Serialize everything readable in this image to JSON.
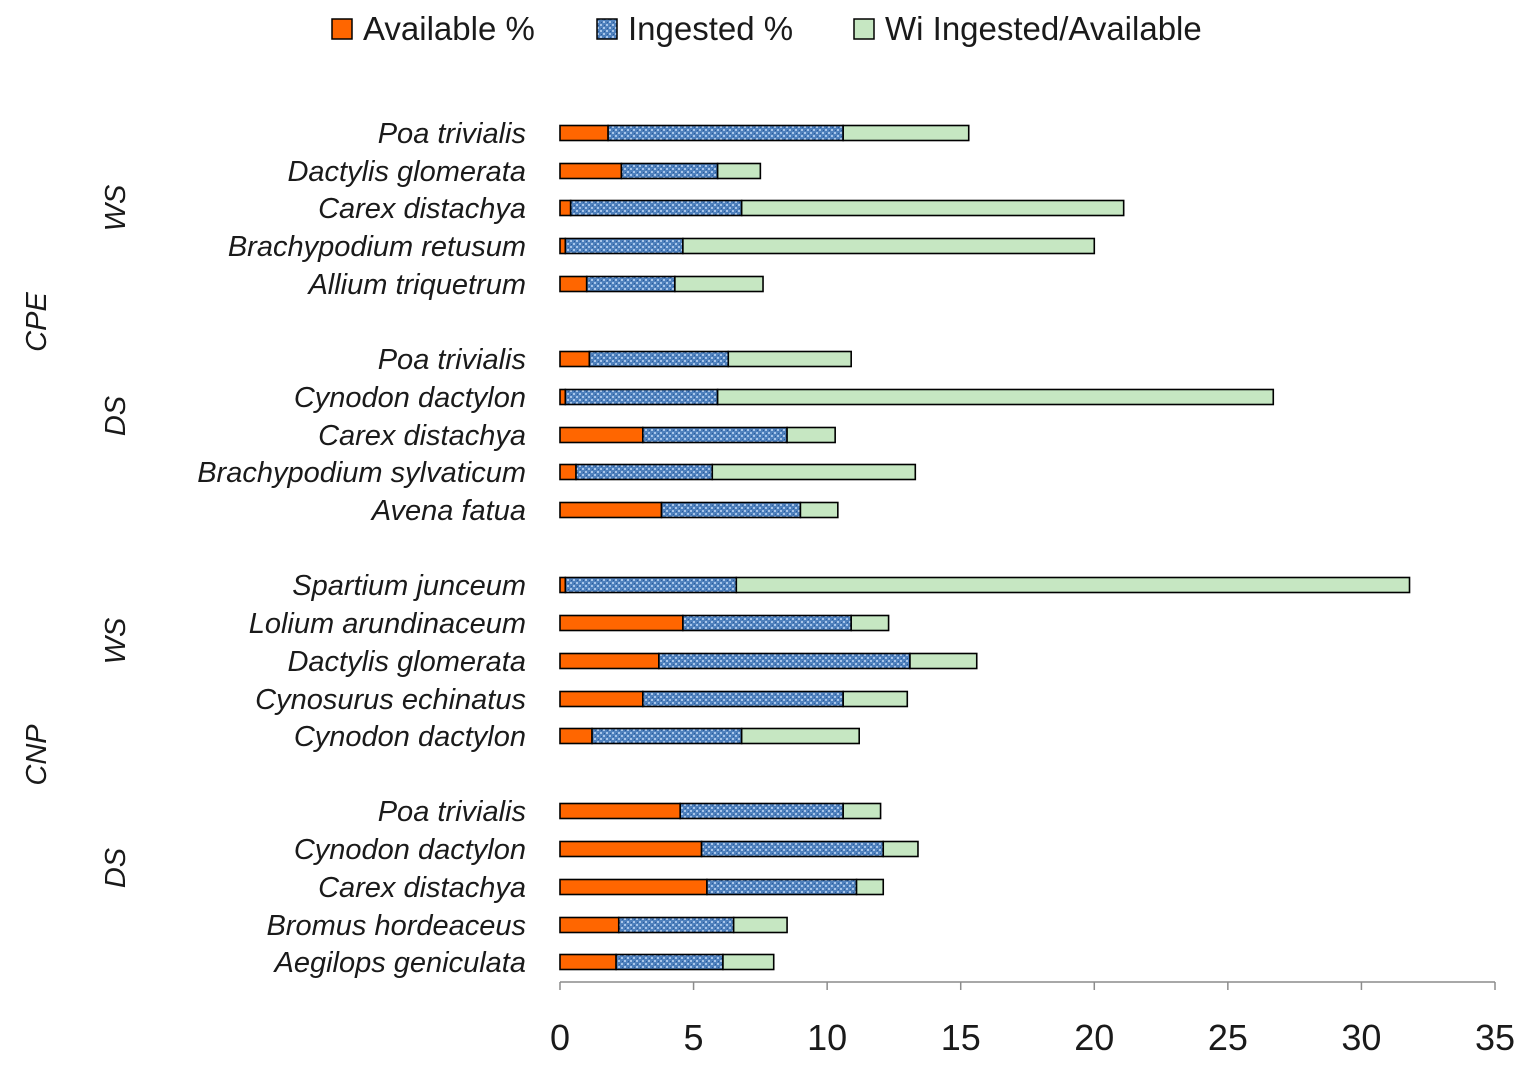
{
  "chart_data": {
    "type": "bar",
    "orientation": "horizontal",
    "stacked": true,
    "title": "",
    "xlabel": "",
    "ylabel": "",
    "xlim": [
      0,
      35
    ],
    "x_ticks": [
      0,
      5,
      10,
      15,
      20,
      25,
      30,
      35
    ],
    "legend_position": "top",
    "colors": {
      "available": "#ff6600",
      "ingested": "#4f81bd",
      "wi": "#c6e7c2",
      "border": "#000000"
    },
    "series": [
      {
        "key": "available",
        "name": "Available %"
      },
      {
        "key": "ingested",
        "name": "Ingested %"
      },
      {
        "key": "wi",
        "name": "Wi Ingested/Available"
      }
    ],
    "groups": [
      {
        "outer": "CPE",
        "season": "WS",
        "rows": [
          {
            "label": "Poa trivialis",
            "values": [
              1.8,
              8.8,
              4.7
            ]
          },
          {
            "label": "Dactylis glomerata",
            "values": [
              2.3,
              3.6,
              1.6
            ]
          },
          {
            "label": "Carex distachya",
            "values": [
              0.4,
              6.4,
              14.3
            ]
          },
          {
            "label": "Brachypodium retusum",
            "values": [
              0.2,
              4.4,
              15.4
            ]
          },
          {
            "label": "Allium triquetrum",
            "values": [
              1.0,
              3.3,
              3.3
            ]
          }
        ]
      },
      {
        "outer": "CPE",
        "season": "DS",
        "rows": [
          {
            "label": "Poa trivialis",
            "values": [
              1.1,
              5.2,
              4.6
            ]
          },
          {
            "label": "Cynodon dactylon",
            "values": [
              0.2,
              5.7,
              20.8
            ]
          },
          {
            "label": "Carex distachya",
            "values": [
              3.1,
              5.4,
              1.8
            ]
          },
          {
            "label": "Brachypodium sylvaticum",
            "values": [
              0.6,
              5.1,
              7.6
            ]
          },
          {
            "label": "Avena fatua",
            "values": [
              3.8,
              5.2,
              1.4
            ]
          }
        ]
      },
      {
        "outer": "CNP",
        "season": "WS",
        "rows": [
          {
            "label": "Spartium junceum",
            "values": [
              0.2,
              6.4,
              25.2
            ]
          },
          {
            "label": "Lolium arundinaceum",
            "values": [
              4.6,
              6.3,
              1.4
            ]
          },
          {
            "label": "Dactylis glomerata",
            "values": [
              3.7,
              9.4,
              2.5
            ]
          },
          {
            "label": "Cynosurus echinatus",
            "values": [
              3.1,
              7.5,
              2.4
            ]
          },
          {
            "label": "Cynodon dactylon",
            "values": [
              1.2,
              5.6,
              4.4
            ]
          }
        ]
      },
      {
        "outer": "CNP",
        "season": "DS",
        "rows": [
          {
            "label": "Poa trivialis",
            "values": [
              4.5,
              6.1,
              1.4
            ]
          },
          {
            "label": "Cynodon dactylon",
            "values": [
              5.3,
              6.8,
              1.3
            ]
          },
          {
            "label": "Carex distachya",
            "values": [
              5.5,
              5.6,
              1.0
            ]
          },
          {
            "label": "Bromus hordeaceus",
            "values": [
              2.2,
              4.3,
              2.0
            ]
          },
          {
            "label": "Aegilops geniculata",
            "values": [
              2.1,
              4.0,
              1.9
            ]
          }
        ]
      }
    ],
    "outer_labels": [
      "CPE",
      "CNP"
    ]
  }
}
